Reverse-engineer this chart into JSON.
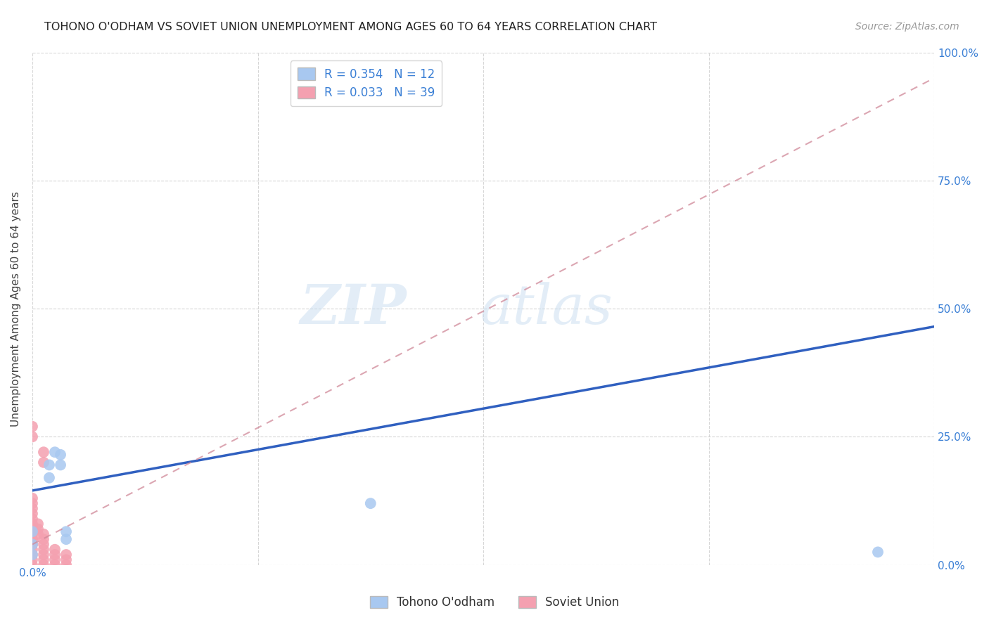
{
  "title": "TOHONO O'ODHAM VS SOVIET UNION UNEMPLOYMENT AMONG AGES 60 TO 64 YEARS CORRELATION CHART",
  "source": "Source: ZipAtlas.com",
  "ylabel": "Unemployment Among Ages 60 to 64 years",
  "xlim": [
    0.0,
    0.8
  ],
  "ylim": [
    0.0,
    1.0
  ],
  "xticks": [
    0.0,
    0.2,
    0.4,
    0.6,
    0.8
  ],
  "yticks": [
    0.0,
    0.25,
    0.5,
    0.75,
    1.0
  ],
  "xtick_labels_shown": {
    "0.0": "0.0%"
  },
  "ytick_labels_right": [
    "0.0%",
    "25.0%",
    "50.0%",
    "75.0%",
    "100.0%"
  ],
  "tohono_color": "#a8c8f0",
  "soviet_color": "#f4a0b0",
  "tohono_line_color": "#3060c0",
  "soviet_line_color": "#d08898",
  "tohono_R": 0.354,
  "tohono_N": 12,
  "soviet_R": 0.033,
  "soviet_N": 39,
  "legend_label_tohono": "Tohono O'odham",
  "legend_label_soviet": "Soviet Union",
  "watermark_zip": "ZIP",
  "watermark_atlas": "atlas",
  "background_color": "#ffffff",
  "label_color": "#3a7fd5",
  "tohono_line_x": [
    0.0,
    0.8
  ],
  "tohono_line_y": [
    0.145,
    0.465
  ],
  "soviet_line_x": [
    0.0,
    0.8
  ],
  "soviet_line_y": [
    0.04,
    0.95
  ],
  "tohono_points_x": [
    0.0,
    0.0,
    0.0,
    0.015,
    0.015,
    0.02,
    0.025,
    0.025,
    0.03,
    0.03,
    0.3,
    0.75
  ],
  "tohono_points_y": [
    0.02,
    0.04,
    0.065,
    0.17,
    0.195,
    0.22,
    0.195,
    0.215,
    0.05,
    0.065,
    0.12,
    0.025
  ],
  "soviet_points_x": [
    0.0,
    0.0,
    0.0,
    0.0,
    0.0,
    0.0,
    0.0,
    0.0,
    0.0,
    0.0,
    0.0,
    0.0,
    0.0,
    0.0,
    0.0,
    0.0,
    0.0,
    0.0,
    0.0,
    0.0,
    0.005,
    0.005,
    0.005,
    0.01,
    0.01,
    0.01,
    0.01,
    0.01,
    0.01,
    0.01,
    0.01,
    0.01,
    0.02,
    0.02,
    0.02,
    0.02,
    0.03,
    0.03,
    0.03
  ],
  "soviet_points_y": [
    0.0,
    0.01,
    0.02,
    0.03,
    0.04,
    0.05,
    0.06,
    0.07,
    0.08,
    0.09,
    0.1,
    0.11,
    0.12,
    0.13,
    0.25,
    0.27,
    0.04,
    0.05,
    0.065,
    0.075,
    0.06,
    0.07,
    0.08,
    0.0,
    0.01,
    0.02,
    0.03,
    0.04,
    0.05,
    0.06,
    0.2,
    0.22,
    0.0,
    0.01,
    0.02,
    0.03,
    0.0,
    0.01,
    0.02
  ]
}
